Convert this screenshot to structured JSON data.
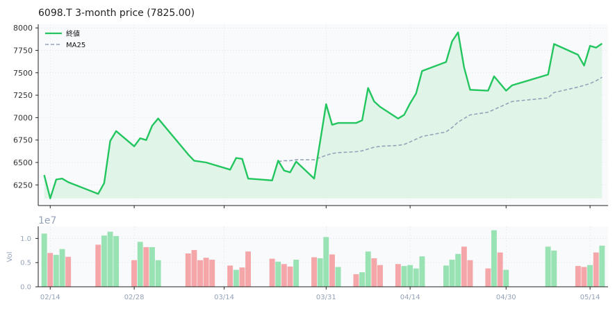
{
  "chart_data": {
    "type": "line",
    "title": "6098.T  3-month price (7825.00)",
    "colors": {
      "price_line": "#22c55e",
      "price_fill": "#dcf3e4",
      "ma_line": "#94a3b8",
      "vol_up": "#99e2b4",
      "vol_down": "#f4a6a8",
      "panel_bg": "#f8fafc",
      "grid": "#e2e8f0"
    },
    "price_panel": {
      "ylim": [
        6020,
        8040
      ],
      "yticks": [
        6250,
        6500,
        6750,
        7000,
        7250,
        7500,
        7750,
        8000
      ],
      "ytick_labels": [
        "6250",
        "6500",
        "6750",
        "7000",
        "7250",
        "7500",
        "7750",
        "8000"
      ],
      "fill_base": 6100,
      "grid": true,
      "legend_position": "upper-left",
      "legend": [
        {
          "label": "終値",
          "series": "price"
        },
        {
          "label": "MA25",
          "series": "ma25"
        }
      ]
    },
    "volume_panel": {
      "ylabel": "Vol",
      "offset_text": "1e7",
      "ylim": [
        0,
        12500000
      ],
      "yticks": [
        0,
        5000000,
        10000000
      ],
      "ytick_labels": [
        "0.0",
        "0.5",
        "1.0"
      ]
    },
    "x_axis": {
      "start": "2024-02-12",
      "end": "2024-05-17",
      "ticks": [
        "2024-02-14",
        "2024-02-28",
        "2024-03-14",
        "2024-03-31",
        "2024-04-14",
        "2024-04-30",
        "2024-05-14"
      ],
      "tick_labels": [
        "02/14",
        "02/28",
        "03/14",
        "03/31",
        "04/14",
        "04/30",
        "05/14"
      ]
    },
    "series": [
      {
        "name": "終値",
        "key": "price",
        "style": "solid",
        "points": [
          [
            "2024-02-13",
            6360
          ],
          [
            "2024-02-14",
            6100
          ],
          [
            "2024-02-15",
            6310
          ],
          [
            "2024-02-16",
            6320
          ],
          [
            "2024-02-17",
            6280
          ],
          [
            "2024-02-22",
            6150
          ],
          [
            "2024-02-23",
            6270
          ],
          [
            "2024-02-24",
            6740
          ],
          [
            "2024-02-25",
            6850
          ],
          [
            "2024-02-28",
            6680
          ],
          [
            "2024-02-29",
            6770
          ],
          [
            "2024-03-01",
            6750
          ],
          [
            "2024-03-02",
            6910
          ],
          [
            "2024-03-03",
            6990
          ],
          [
            "2024-03-08",
            6590
          ],
          [
            "2024-03-09",
            6520
          ],
          [
            "2024-03-11",
            6500
          ],
          [
            "2024-03-15",
            6420
          ],
          [
            "2024-03-16",
            6550
          ],
          [
            "2024-03-17",
            6540
          ],
          [
            "2024-03-18",
            6320
          ],
          [
            "2024-03-22",
            6300
          ],
          [
            "2024-03-23",
            6520
          ],
          [
            "2024-03-24",
            6410
          ],
          [
            "2024-03-25",
            6390
          ],
          [
            "2024-03-26",
            6510
          ],
          [
            "2024-03-29",
            6320
          ],
          [
            "2024-03-31",
            7150
          ],
          [
            "2024-04-01",
            6920
          ],
          [
            "2024-04-02",
            6940
          ],
          [
            "2024-04-05",
            6940
          ],
          [
            "2024-04-06",
            6970
          ],
          [
            "2024-04-07",
            7330
          ],
          [
            "2024-04-08",
            7180
          ],
          [
            "2024-04-09",
            7120
          ],
          [
            "2024-04-12",
            6990
          ],
          [
            "2024-04-13",
            7030
          ],
          [
            "2024-04-14",
            7160
          ],
          [
            "2024-04-15",
            7270
          ],
          [
            "2024-04-16",
            7520
          ],
          [
            "2024-04-20",
            7620
          ],
          [
            "2024-04-21",
            7850
          ],
          [
            "2024-04-22",
            7950
          ],
          [
            "2024-04-23",
            7560
          ],
          [
            "2024-04-24",
            7310
          ],
          [
            "2024-04-27",
            7300
          ],
          [
            "2024-04-28",
            7460
          ],
          [
            "2024-04-30",
            7300
          ],
          [
            "2024-05-01",
            7360
          ],
          [
            "2024-05-07",
            7480
          ],
          [
            "2024-05-08",
            7820
          ],
          [
            "2024-05-12",
            7700
          ],
          [
            "2024-05-13",
            7580
          ],
          [
            "2024-05-14",
            7800
          ],
          [
            "2024-05-15",
            7780
          ],
          [
            "2024-05-16",
            7825
          ]
        ]
      },
      {
        "name": "MA25",
        "key": "ma25",
        "style": "dashed",
        "points": [
          [
            "2024-03-23",
            6510
          ],
          [
            "2024-03-24",
            6520
          ],
          [
            "2024-03-25",
            6520
          ],
          [
            "2024-03-26",
            6530
          ],
          [
            "2024-03-29",
            6530
          ],
          [
            "2024-03-31",
            6580
          ],
          [
            "2024-04-01",
            6600
          ],
          [
            "2024-04-02",
            6610
          ],
          [
            "2024-04-05",
            6620
          ],
          [
            "2024-04-06",
            6630
          ],
          [
            "2024-04-07",
            6650
          ],
          [
            "2024-04-08",
            6670
          ],
          [
            "2024-04-09",
            6680
          ],
          [
            "2024-04-12",
            6690
          ],
          [
            "2024-04-13",
            6700
          ],
          [
            "2024-04-14",
            6730
          ],
          [
            "2024-04-15",
            6760
          ],
          [
            "2024-04-16",
            6790
          ],
          [
            "2024-04-20",
            6840
          ],
          [
            "2024-04-21",
            6890
          ],
          [
            "2024-04-22",
            6950
          ],
          [
            "2024-04-23",
            6990
          ],
          [
            "2024-04-24",
            7030
          ],
          [
            "2024-04-27",
            7060
          ],
          [
            "2024-04-28",
            7090
          ],
          [
            "2024-04-30",
            7150
          ],
          [
            "2024-05-01",
            7180
          ],
          [
            "2024-05-07",
            7220
          ],
          [
            "2024-05-08",
            7280
          ],
          [
            "2024-05-12",
            7340
          ],
          [
            "2024-05-13",
            7360
          ],
          [
            "2024-05-14",
            7380
          ],
          [
            "2024-05-15",
            7410
          ],
          [
            "2024-05-16",
            7450
          ]
        ]
      }
    ],
    "volume": [
      [
        "2024-02-13",
        11000000,
        "up"
      ],
      [
        "2024-02-14",
        7000000,
        "down"
      ],
      [
        "2024-02-15",
        6600000,
        "up"
      ],
      [
        "2024-02-16",
        7800000,
        "up"
      ],
      [
        "2024-02-17",
        6200000,
        "down"
      ],
      [
        "2024-02-22",
        8700000,
        "down"
      ],
      [
        "2024-02-23",
        10600000,
        "up"
      ],
      [
        "2024-02-24",
        11400000,
        "up"
      ],
      [
        "2024-02-25",
        10500000,
        "up"
      ],
      [
        "2024-02-28",
        5500000,
        "down"
      ],
      [
        "2024-02-29",
        9300000,
        "up"
      ],
      [
        "2024-03-01",
        8200000,
        "down"
      ],
      [
        "2024-03-02",
        8200000,
        "up"
      ],
      [
        "2024-03-03",
        5500000,
        "up"
      ],
      [
        "2024-03-08",
        6900000,
        "down"
      ],
      [
        "2024-03-09",
        7600000,
        "down"
      ],
      [
        "2024-03-10",
        5500000,
        "down"
      ],
      [
        "2024-03-11",
        6000000,
        "down"
      ],
      [
        "2024-03-12",
        5600000,
        "down"
      ],
      [
        "2024-03-15",
        4400000,
        "down"
      ],
      [
        "2024-03-16",
        3500000,
        "up"
      ],
      [
        "2024-03-17",
        4000000,
        "down"
      ],
      [
        "2024-03-18",
        7300000,
        "down"
      ],
      [
        "2024-03-22",
        5800000,
        "down"
      ],
      [
        "2024-03-23",
        5200000,
        "up"
      ],
      [
        "2024-03-24",
        4700000,
        "down"
      ],
      [
        "2024-03-25",
        4200000,
        "down"
      ],
      [
        "2024-03-26",
        5600000,
        "up"
      ],
      [
        "2024-03-29",
        6100000,
        "down"
      ],
      [
        "2024-03-30",
        5900000,
        "up"
      ],
      [
        "2024-03-31",
        10300000,
        "up"
      ],
      [
        "2024-04-01",
        6700000,
        "down"
      ],
      [
        "2024-04-02",
        4100000,
        "up"
      ],
      [
        "2024-04-05",
        2600000,
        "down"
      ],
      [
        "2024-04-06",
        3000000,
        "up"
      ],
      [
        "2024-04-07",
        7300000,
        "up"
      ],
      [
        "2024-04-08",
        5900000,
        "down"
      ],
      [
        "2024-04-09",
        4500000,
        "down"
      ],
      [
        "2024-04-12",
        4700000,
        "down"
      ],
      [
        "2024-04-13",
        4300000,
        "up"
      ],
      [
        "2024-04-14",
        4500000,
        "up"
      ],
      [
        "2024-04-15",
        3800000,
        "up"
      ],
      [
        "2024-04-16",
        6300000,
        "up"
      ],
      [
        "2024-04-20",
        4400000,
        "up"
      ],
      [
        "2024-04-21",
        5600000,
        "up"
      ],
      [
        "2024-04-22",
        6800000,
        "up"
      ],
      [
        "2024-04-23",
        8300000,
        "down"
      ],
      [
        "2024-04-24",
        5500000,
        "down"
      ],
      [
        "2024-04-27",
        3800000,
        "down"
      ],
      [
        "2024-04-28",
        11700000,
        "up"
      ],
      [
        "2024-04-29",
        7100000,
        "down"
      ],
      [
        "2024-04-30",
        3500000,
        "up"
      ],
      [
        "2024-05-07",
        8300000,
        "up"
      ],
      [
        "2024-05-08",
        7500000,
        "up"
      ],
      [
        "2024-05-12",
        4300000,
        "down"
      ],
      [
        "2024-05-13",
        4100000,
        "down"
      ],
      [
        "2024-05-14",
        4500000,
        "up"
      ],
      [
        "2024-05-15",
        7100000,
        "down"
      ],
      [
        "2024-05-16",
        8500000,
        "up"
      ]
    ]
  }
}
